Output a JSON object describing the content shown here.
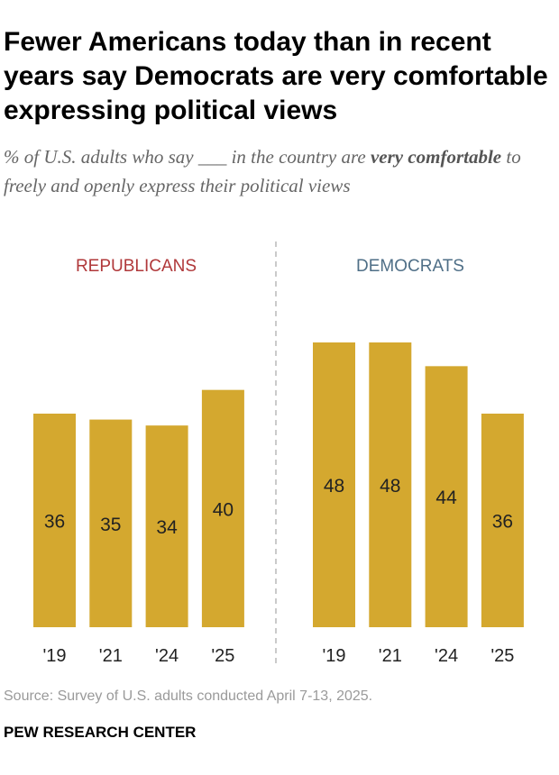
{
  "header": {
    "title": "Fewer Americans today than in recent years say Democrats are very comfortable expressing political views",
    "subtitle_pre": "% of U.S. adults who say ___ in the country are ",
    "subtitle_bold": "very comfortable",
    "subtitle_post": " to freely and openly express their political views"
  },
  "chart_data": {
    "type": "bar",
    "panels": [
      {
        "name": "REPUBLICANS",
        "color": "#b0383a",
        "categories": [
          "'19",
          "'21",
          "'24",
          "'25"
        ],
        "values": [
          36,
          35,
          34,
          40
        ]
      },
      {
        "name": "DEMOCRATS",
        "color": "#4f6f87",
        "categories": [
          "'19",
          "'21",
          "'24",
          "'25"
        ],
        "values": [
          48,
          48,
          44,
          36
        ]
      }
    ],
    "bar_color": "#d4a82f",
    "ylim": [
      0,
      48
    ],
    "grid": false
  },
  "footer": {
    "source": "Source: Survey of U.S. adults conducted April 7-13, 2025.",
    "brand": "PEW RESEARCH CENTER"
  }
}
